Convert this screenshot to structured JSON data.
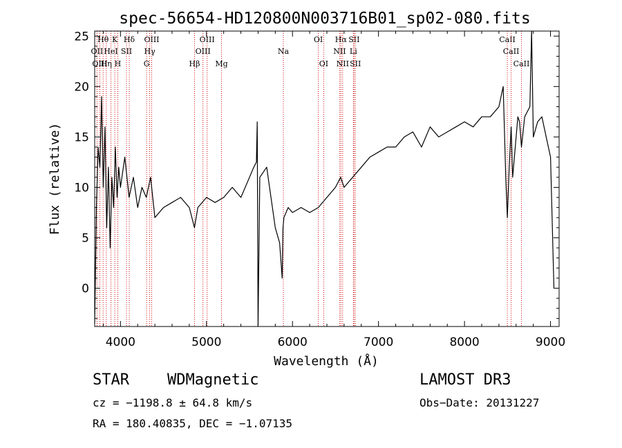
{
  "chart_data": {
    "type": "line",
    "title": "spec-56654-HD120800N003716B01_sp02-080.fits",
    "xlabel": "Wavelength (Å)",
    "ylabel": "Flux (relative)",
    "xlim": [
      3700,
      9100
    ],
    "ylim": [
      -3.8,
      25.5
    ],
    "xticks": [
      "4000",
      "5000",
      "6000",
      "7000",
      "8000",
      "9000"
    ],
    "yticks": [
      "0",
      "5",
      "10",
      "15",
      "20",
      "25"
    ],
    "grid": false,
    "series": [
      {
        "x": [
          3700,
          3720,
          3740,
          3760,
          3780,
          3800,
          3820,
          3840,
          3860,
          3880,
          3900,
          3920,
          3940,
          3960,
          3980,
          4000,
          4050,
          4100,
          4150,
          4200,
          4250,
          4300,
          4350,
          4400,
          4500,
          4600,
          4700,
          4800,
          4860,
          4900,
          5000,
          5100,
          5200,
          5300,
          5400,
          5500,
          5550,
          5580,
          5590,
          5600,
          5620,
          5700,
          5800,
          5850,
          5880,
          5890,
          5900,
          5950,
          6000,
          6100,
          6200,
          6300,
          6400,
          6500,
          6560,
          6600,
          6700,
          6800,
          6900,
          7000,
          7100,
          7200,
          7300,
          7400,
          7500,
          7600,
          7700,
          7800,
          7900,
          8000,
          8100,
          8200,
          8300,
          8400,
          8450,
          8480,
          8498,
          8520,
          8542,
          8560,
          8600,
          8620,
          8640,
          8662,
          8700,
          8760,
          8780,
          8800,
          8850,
          8900,
          8950,
          9000,
          9040
        ],
        "y": [
          -3.5,
          8,
          14,
          12,
          19,
          10,
          16,
          6,
          12,
          4,
          11,
          8,
          14,
          9,
          12,
          10,
          13,
          9,
          11,
          8,
          10,
          9,
          11,
          7,
          8,
          8.5,
          9,
          8,
          6,
          8,
          9,
          8.5,
          9,
          10,
          9,
          11,
          12,
          12.5,
          16.5,
          -3.8,
          11,
          12,
          6,
          4.5,
          1,
          6,
          7,
          8,
          7.5,
          8,
          7.5,
          8,
          9,
          10,
          11,
          10,
          11,
          12,
          13,
          13.5,
          14,
          14,
          15,
          15.5,
          14,
          16,
          15,
          15.5,
          16,
          16.5,
          16,
          17,
          17,
          18,
          20,
          11,
          7,
          12,
          16,
          11,
          15,
          17,
          16.5,
          14,
          17,
          18,
          25.5,
          15,
          16.5,
          17,
          15,
          13,
          0
        ]
      }
    ],
    "lines": [
      {
        "name": "Hθ",
        "wl": 3798,
        "row": 0
      },
      {
        "name": "OII",
        "wl": 3727,
        "row": 1
      },
      {
        "name": "OIII",
        "wl": 3760,
        "row": 2
      },
      {
        "name": "K",
        "wl": 3934,
        "row": 0
      },
      {
        "name": "HeI",
        "wl": 3889,
        "row": 1
      },
      {
        "name": "Hη",
        "wl": 3835,
        "row": 2
      },
      {
        "name": "SII",
        "wl": 4070,
        "row": 1
      },
      {
        "name": "H",
        "wl": 3969,
        "row": 2
      },
      {
        "name": "Hδ",
        "wl": 4102,
        "row": 0
      },
      {
        "name": "OIII",
        "wl": 4363,
        "row": 0
      },
      {
        "name": "Hγ",
        "wl": 4340,
        "row": 1
      },
      {
        "name": "G",
        "wl": 4304,
        "row": 2
      },
      {
        "name": "OIII",
        "wl": 5007,
        "row": 0
      },
      {
        "name": "OIII",
        "wl": 4959,
        "row": 1
      },
      {
        "name": "Hβ",
        "wl": 4861,
        "row": 2
      },
      {
        "name": "Mg",
        "wl": 5175,
        "row": 2
      },
      {
        "name": "Na",
        "wl": 5894,
        "row": 1
      },
      {
        "name": "OI",
        "wl": 6300,
        "row": 0
      },
      {
        "name": "OI",
        "wl": 6363,
        "row": 2
      },
      {
        "name": "Hα",
        "wl": 6563,
        "row": 0
      },
      {
        "name": "NII",
        "wl": 6548,
        "row": 1
      },
      {
        "name": "NII",
        "wl": 6583,
        "row": 2
      },
      {
        "name": "SII",
        "wl": 6716,
        "row": 0
      },
      {
        "name": "Li",
        "wl": 6708,
        "row": 1
      },
      {
        "name": "SII",
        "wl": 6731,
        "row": 2
      },
      {
        "name": "CaII",
        "wl": 8498,
        "row": 0
      },
      {
        "name": "CaII",
        "wl": 8542,
        "row": 1
      },
      {
        "name": "CaII",
        "wl": 8662,
        "row": 2
      }
    ],
    "line_color": "#cc0000",
    "series_color": "#000000"
  },
  "info": {
    "class": "STAR",
    "subclass": "WDMagnetic",
    "survey": "LAMOST DR3",
    "redshift": "cz = −1198.8 ± 64.8 km/s",
    "obsdate": "Obs−Date: 20131227",
    "coords": "RA = 180.40835, DEC =  −1.07135"
  }
}
